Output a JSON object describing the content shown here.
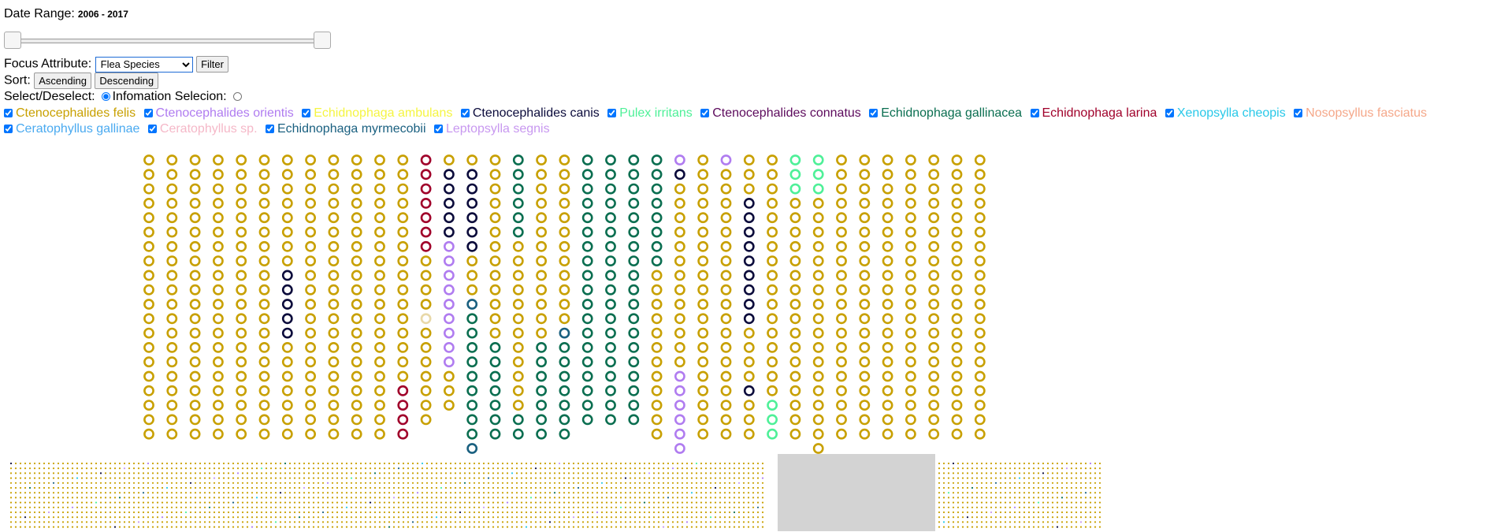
{
  "controls": {
    "date_label": "Date Range:",
    "date_value": "2006 - 2017",
    "focus_label": "Focus Attribute:",
    "focus_selected": "Flea Species",
    "filter_label": "Filter",
    "sort_label": "Sort:",
    "ascending_label": "Ascending",
    "descending_label": "Descending",
    "select_label": "Select/Deselect:",
    "select_checked": true,
    "info_label": "Infomation Selecion:",
    "info_checked": false
  },
  "slider": {
    "low_year": 2006,
    "high_year": 2017,
    "low_fraction": 0.0,
    "high_fraction": 1.0
  },
  "species": [
    {
      "key": "f",
      "name": "Ctenocephalides felis",
      "color": "#c8a000",
      "checked": true
    },
    {
      "key": "o",
      "name": "Ctenocephalides orientis",
      "color": "#b07cf0",
      "checked": true
    },
    {
      "key": "a",
      "name": "Echidnophaga ambulans",
      "color": "#f5f542",
      "checked": true
    },
    {
      "key": "c",
      "name": "Ctenocephalides canis",
      "color": "#0b0b3b",
      "checked": true
    },
    {
      "key": "p",
      "name": "Pulex irritans",
      "color": "#4ef098",
      "checked": true
    },
    {
      "key": "n",
      "name": "Ctenocephalides connatus",
      "color": "#5c0a5c",
      "checked": true
    },
    {
      "key": "g",
      "name": "Echidnophaga gallinacea",
      "color": "#0a6e50",
      "checked": true
    },
    {
      "key": "l",
      "name": "Echidnophaga larina",
      "color": "#a0002a",
      "checked": true
    },
    {
      "key": "x",
      "name": "Xenopsylla cheopis",
      "color": "#28c8e8",
      "checked": true
    },
    {
      "key": "s",
      "name": "Nosopsyllus fasciatus",
      "color": "#f5a88a",
      "checked": true
    },
    {
      "key": "e",
      "name": "Ceratophyllus gallinae",
      "color": "#4aaaf0",
      "checked": true
    },
    {
      "key": "k",
      "name": "Ceratophyllus sp.",
      "color": "#f5b8c8",
      "checked": true
    },
    {
      "key": "m",
      "name": "Echidnophaga myrmecobii",
      "color": "#1a6080",
      "checked": true
    },
    {
      "key": "t",
      "name": "Leptopsylla segnis",
      "color": "#c898f0",
      "checked": true
    },
    {
      "key": "u",
      "name": "",
      "color": "#e8d8a8",
      "checked": false
    }
  ],
  "grid": {
    "columns": [
      "ffffffffffffffffffff",
      "ffffffffffffffffffff",
      "ffffffffffffffffffff",
      "ffffffffffffffffffff",
      "ffffffffffffffffffff",
      "ffffffffffffffffffff",
      "ffffffffcccccfffffff",
      "ffffffffffffffffffff",
      "ffffffffffffffffffff",
      "ffffffffffffffffffff",
      "ffffffffffffffffffff",
      "ffffffffffffffffllll",
      "lllllllffffufffffff",
      "fcccccooooooooofff",
      "fccccccfffmgggggggggm",
      "fffffffffffffggggggg",
      "ggggggffffffffffffgg",
      "fffffffffffffggggggg",
      "ffffffffffffmggggggg",
      "ggggggggggggggggggg",
      "ggggggggggggggggggg",
      "ggggggggggggggggggg",
      "ggggggggffffffffffff",
      "ocfffffffffffffoooooo",
      "ffffffffffffffffffff",
      "offfffffffffffffffff",
      "fffcccccccccffffcfff",
      "fffffffffffffffffppp",
      "pppfffffffffffffffff",
      "pppffffffffffffffffff",
      "ffffffffffffffffffff",
      "ffffffffffffffffffff",
      "ffffffffffffffffffff",
      "ffffffffffffffffffff",
      "ffffffffffffffffffff",
      "ffffffffffffffffffff",
      "ffffffffffffffffffff"
    ]
  },
  "mini": {
    "columns_before_brush": 160,
    "columns_after_brush": 35,
    "rows": 14
  }
}
